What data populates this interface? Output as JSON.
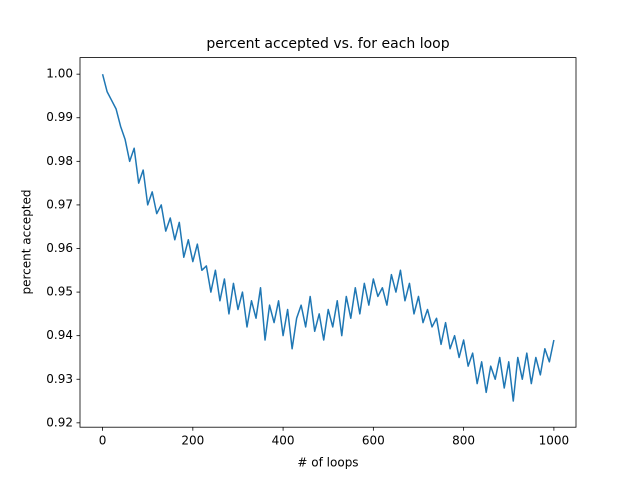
{
  "chart_data": {
    "type": "line",
    "title": "percent accepted vs. for each loop",
    "xlabel": "# of loops",
    "ylabel": "percent accepted",
    "color": "#1f77b4",
    "x": [
      0,
      10,
      20,
      30,
      40,
      50,
      60,
      70,
      80,
      90,
      100,
      110,
      120,
      130,
      140,
      150,
      160,
      170,
      180,
      190,
      200,
      210,
      220,
      230,
      240,
      250,
      260,
      270,
      280,
      290,
      300,
      310,
      320,
      330,
      340,
      350,
      360,
      370,
      380,
      390,
      400,
      410,
      420,
      430,
      440,
      450,
      460,
      470,
      480,
      490,
      500,
      510,
      520,
      530,
      540,
      550,
      560,
      570,
      580,
      590,
      600,
      610,
      620,
      630,
      640,
      650,
      660,
      670,
      680,
      690,
      700,
      710,
      720,
      730,
      740,
      750,
      760,
      770,
      780,
      790,
      800,
      810,
      820,
      830,
      840,
      850,
      860,
      870,
      880,
      890,
      900,
      910,
      920,
      930,
      940,
      950,
      960,
      970,
      980,
      990,
      1000
    ],
    "values": [
      1.0,
      0.996,
      0.994,
      0.992,
      0.988,
      0.985,
      0.98,
      0.983,
      0.975,
      0.978,
      0.97,
      0.973,
      0.968,
      0.97,
      0.964,
      0.967,
      0.962,
      0.966,
      0.958,
      0.962,
      0.957,
      0.961,
      0.955,
      0.956,
      0.95,
      0.955,
      0.948,
      0.953,
      0.945,
      0.952,
      0.946,
      0.95,
      0.942,
      0.948,
      0.944,
      0.951,
      0.939,
      0.947,
      0.943,
      0.948,
      0.94,
      0.946,
      0.937,
      0.944,
      0.947,
      0.942,
      0.949,
      0.941,
      0.945,
      0.939,
      0.946,
      0.942,
      0.948,
      0.94,
      0.949,
      0.944,
      0.951,
      0.945,
      0.952,
      0.947,
      0.953,
      0.949,
      0.951,
      0.947,
      0.954,
      0.95,
      0.955,
      0.948,
      0.952,
      0.945,
      0.949,
      0.943,
      0.946,
      0.942,
      0.944,
      0.938,
      0.943,
      0.937,
      0.94,
      0.935,
      0.939,
      0.933,
      0.936,
      0.929,
      0.934,
      0.927,
      0.933,
      0.93,
      0.935,
      0.928,
      0.934,
      0.925,
      0.935,
      0.93,
      0.936,
      0.929,
      0.935,
      0.931,
      0.937,
      0.934,
      0.939
    ],
    "xlim": [
      -50,
      1049
    ],
    "ylim": [
      0.919,
      1.0038
    ],
    "xticks": [
      0,
      200,
      400,
      600,
      800,
      1000
    ],
    "yticks": [
      0.92,
      0.93,
      0.94,
      0.95,
      0.96,
      0.97,
      0.98,
      0.99,
      {
        "value": 1,
        "label": "1.00"
      }
    ]
  }
}
